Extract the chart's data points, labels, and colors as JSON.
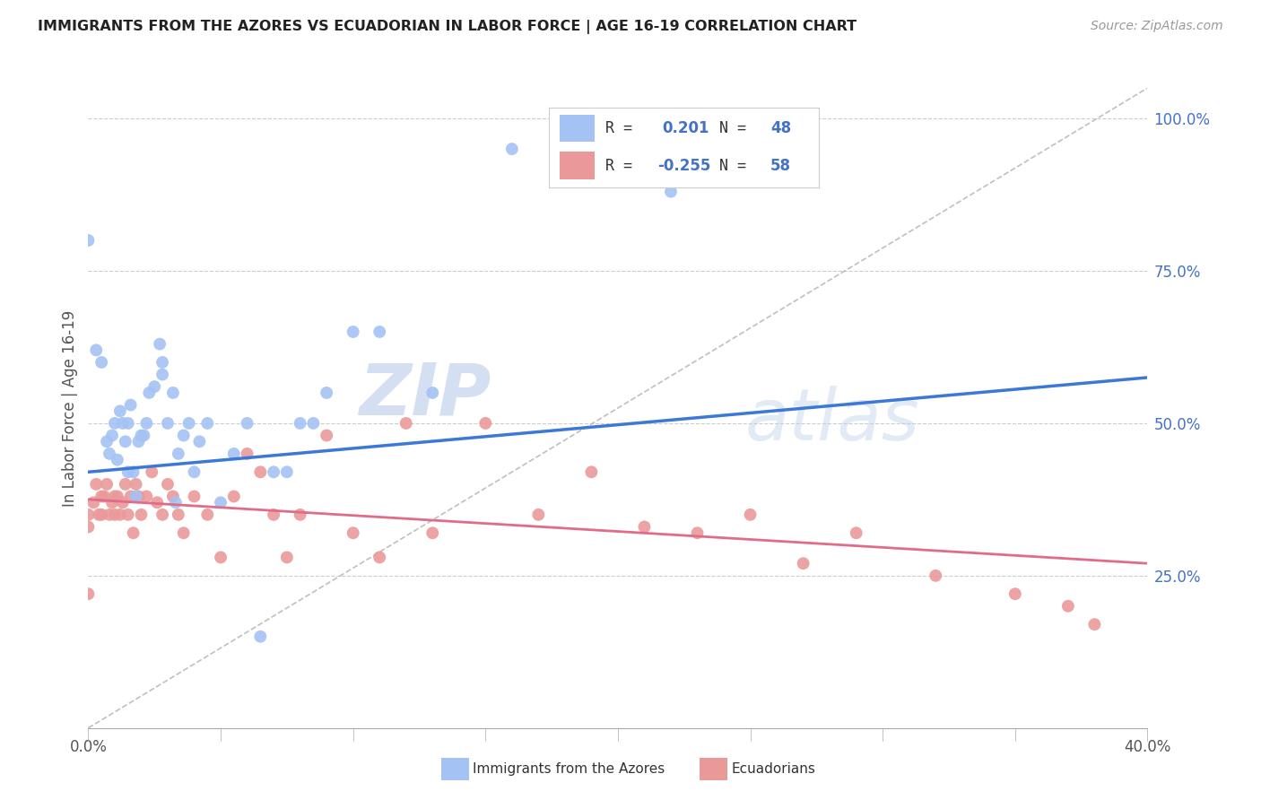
{
  "title": "IMMIGRANTS FROM THE AZORES VS ECUADORIAN IN LABOR FORCE | AGE 16-19 CORRELATION CHART",
  "source": "Source: ZipAtlas.com",
  "ylabel": "In Labor Force | Age 16-19",
  "xlim": [
    0.0,
    0.4
  ],
  "ylim": [
    0.0,
    1.05
  ],
  "yticks": [
    0.0,
    0.25,
    0.5,
    0.75,
    1.0
  ],
  "ytick_labels": [
    "",
    "25.0%",
    "50.0%",
    "75.0%",
    "100.0%"
  ],
  "xticks": [
    0.0,
    0.05,
    0.1,
    0.15,
    0.2,
    0.25,
    0.3,
    0.35,
    0.4
  ],
  "xtick_labels": [
    "0.0%",
    "",
    "",
    "",
    "",
    "",
    "",
    "",
    "40.0%"
  ],
  "blue_color": "#a4c2f4",
  "pink_color": "#ea9999",
  "blue_line_color": "#3c78d8",
  "pink_line_color": "#e06c8a",
  "dashed_line_color": "#b0b0b0",
  "tick_color": "#4472c4",
  "watermark_zip": "ZIP",
  "watermark_atlas": "atlas",
  "azores_x": [
    0.003,
    0.005,
    0.007,
    0.008,
    0.009,
    0.01,
    0.011,
    0.012,
    0.013,
    0.014,
    0.015,
    0.015,
    0.016,
    0.017,
    0.018,
    0.019,
    0.02,
    0.021,
    0.022,
    0.023,
    0.025,
    0.027,
    0.028,
    0.028,
    0.03,
    0.032,
    0.033,
    0.034,
    0.036,
    0.038,
    0.04,
    0.042,
    0.045,
    0.05,
    0.055,
    0.06,
    0.065,
    0.07,
    0.075,
    0.08,
    0.085,
    0.09,
    0.1,
    0.11,
    0.13,
    0.16,
    0.22,
    0.0
  ],
  "azores_y": [
    0.62,
    0.6,
    0.47,
    0.45,
    0.48,
    0.5,
    0.44,
    0.52,
    0.5,
    0.47,
    0.5,
    0.42,
    0.53,
    0.42,
    0.38,
    0.47,
    0.48,
    0.48,
    0.5,
    0.55,
    0.56,
    0.63,
    0.58,
    0.6,
    0.5,
    0.55,
    0.37,
    0.45,
    0.48,
    0.5,
    0.42,
    0.47,
    0.5,
    0.37,
    0.45,
    0.5,
    0.15,
    0.42,
    0.42,
    0.5,
    0.5,
    0.55,
    0.65,
    0.65,
    0.55,
    0.95,
    0.88,
    0.8
  ],
  "ecuador_x": [
    0.0,
    0.0,
    0.002,
    0.003,
    0.004,
    0.005,
    0.005,
    0.006,
    0.007,
    0.008,
    0.009,
    0.01,
    0.01,
    0.011,
    0.012,
    0.013,
    0.014,
    0.015,
    0.016,
    0.017,
    0.018,
    0.019,
    0.02,
    0.022,
    0.024,
    0.026,
    0.028,
    0.03,
    0.032,
    0.034,
    0.036,
    0.04,
    0.045,
    0.05,
    0.055,
    0.06,
    0.065,
    0.07,
    0.075,
    0.08,
    0.09,
    0.1,
    0.11,
    0.12,
    0.13,
    0.15,
    0.17,
    0.19,
    0.21,
    0.23,
    0.25,
    0.27,
    0.29,
    0.32,
    0.35,
    0.37,
    0.38,
    0.0
  ],
  "ecuador_y": [
    0.35,
    0.22,
    0.37,
    0.4,
    0.35,
    0.35,
    0.38,
    0.38,
    0.4,
    0.35,
    0.37,
    0.35,
    0.38,
    0.38,
    0.35,
    0.37,
    0.4,
    0.35,
    0.38,
    0.32,
    0.4,
    0.38,
    0.35,
    0.38,
    0.42,
    0.37,
    0.35,
    0.4,
    0.38,
    0.35,
    0.32,
    0.38,
    0.35,
    0.28,
    0.38,
    0.45,
    0.42,
    0.35,
    0.28,
    0.35,
    0.48,
    0.32,
    0.28,
    0.5,
    0.32,
    0.5,
    0.35,
    0.42,
    0.33,
    0.32,
    0.35,
    0.27,
    0.32,
    0.25,
    0.22,
    0.2,
    0.17,
    0.33
  ],
  "blue_trend_x": [
    0.0,
    0.4
  ],
  "blue_trend_y": [
    0.42,
    0.575
  ],
  "pink_trend_x": [
    0.0,
    0.4
  ],
  "pink_trend_y": [
    0.375,
    0.27
  ]
}
